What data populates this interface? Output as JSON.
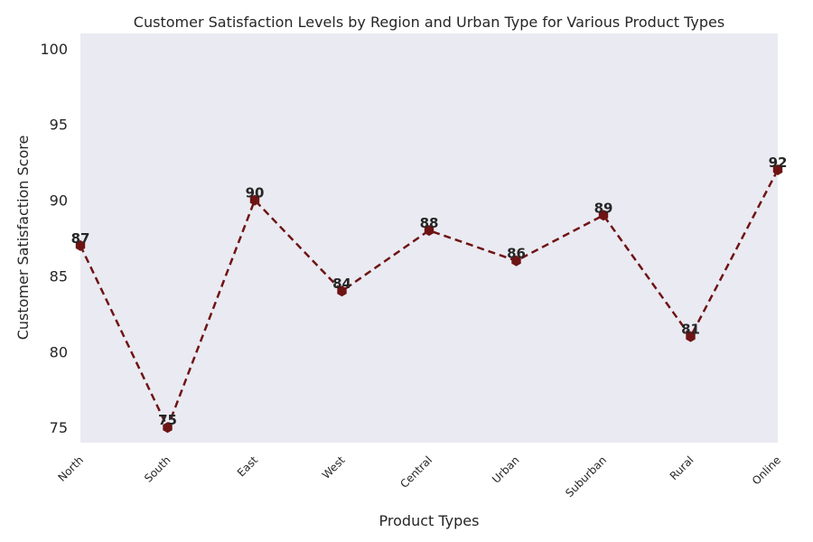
{
  "chart_data": {
    "type": "line",
    "title": "Customer Satisfaction Levels by Region and Urban Type for Various Product Types",
    "xlabel": "Product Types",
    "ylabel": "Customer Satisfaction Score",
    "categories": [
      "North",
      "South",
      "East",
      "West",
      "Central",
      "Urban",
      "Suburban",
      "Rural",
      "Online"
    ],
    "series": [
      {
        "name": "Customer Satisfaction",
        "values": [
          87,
          75,
          90,
          84,
          88,
          86,
          89,
          81,
          92
        ]
      }
    ],
    "ylim": [
      74,
      101
    ],
    "yticks": [
      75,
      80,
      85,
      90,
      95,
      100
    ],
    "grid": false,
    "line_style": "dashed",
    "marker": "hexagon",
    "colors": {
      "line": "#6e1414",
      "marker": "#6e1414",
      "plot_background": "#eaeaf2",
      "text": "#262626"
    }
  }
}
